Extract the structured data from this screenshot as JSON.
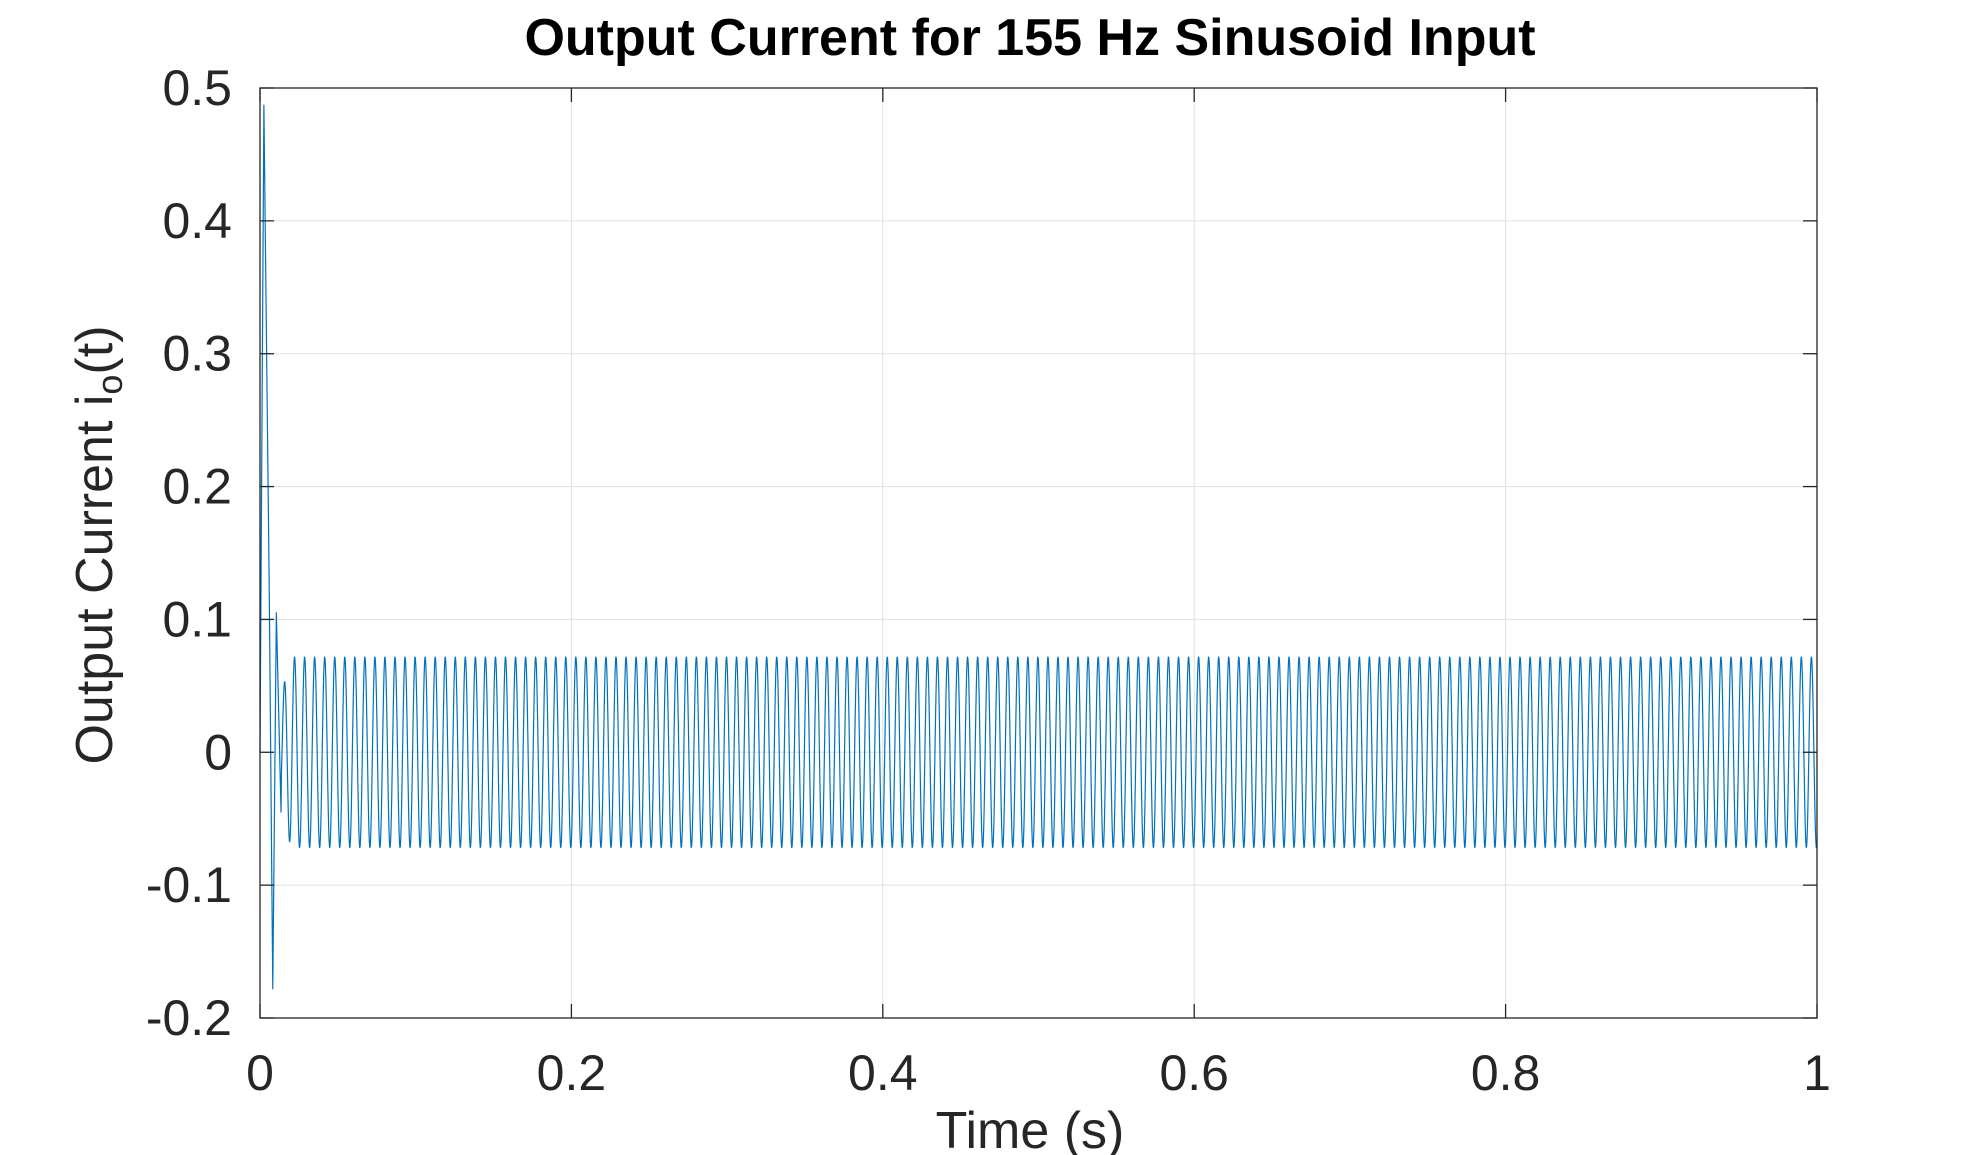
{
  "chart_data": {
    "type": "line",
    "title": "Output Current for 155 Hz Sinusoid Input",
    "xlabel": "Time (s)",
    "ylabel": "Output Current i",
    "ylabel_subscript": "o",
    "ylabel_suffix": "(t)",
    "xlim": [
      0,
      1
    ],
    "ylim": [
      -0.2,
      0.5
    ],
    "xticks": [
      "0",
      "0.2",
      "0.4",
      "0.6",
      "0.8",
      "1"
    ],
    "yticks": [
      "-0.2",
      "-0.1",
      "0",
      "0.1",
      "0.2",
      "0.3",
      "0.4",
      "0.5"
    ],
    "grid": true,
    "series": [
      {
        "color": "#0072BD",
        "frequency_hz": 155,
        "steady_state_amplitude": 0.072,
        "transient_points": [
          [
            0,
            0
          ],
          [
            0.0025,
            0.487
          ],
          [
            0.006,
            0.115
          ],
          [
            0.0082,
            -0.178
          ],
          [
            0.0105,
            0.105
          ],
          [
            0.0135,
            -0.045
          ]
        ],
        "settle_time": 0.02,
        "x_end": 1
      }
    ]
  }
}
